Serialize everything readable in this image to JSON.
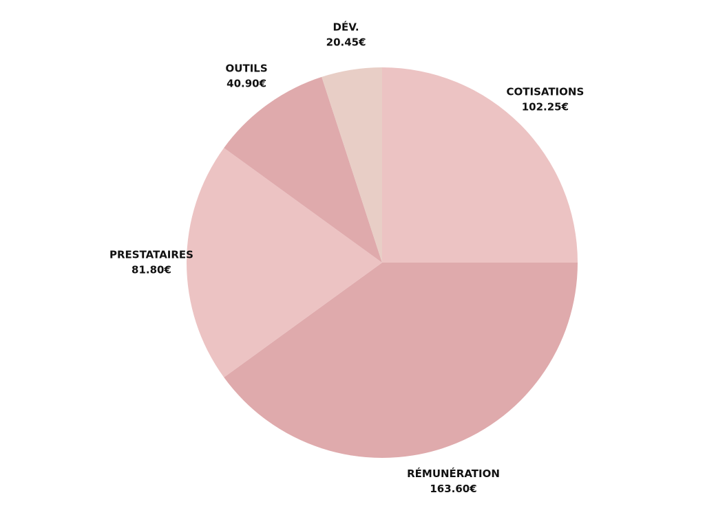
{
  "chart_data": {
    "type": "pie",
    "categories": [
      "COTISATIONS",
      "RÉMUNÉRATION",
      "PRESTATAIRES",
      "OUTILS",
      "DÉV."
    ],
    "values": [
      102.25,
      163.6,
      81.8,
      40.9,
      20.45
    ],
    "value_labels": [
      "102.25€",
      "163.60€",
      "81.80€",
      "40.90€",
      "20.45€"
    ],
    "colors": [
      "#ecc3c3",
      "#dfaaac",
      "#ecc3c3",
      "#dfaaac",
      "#e8cec6"
    ]
  }
}
